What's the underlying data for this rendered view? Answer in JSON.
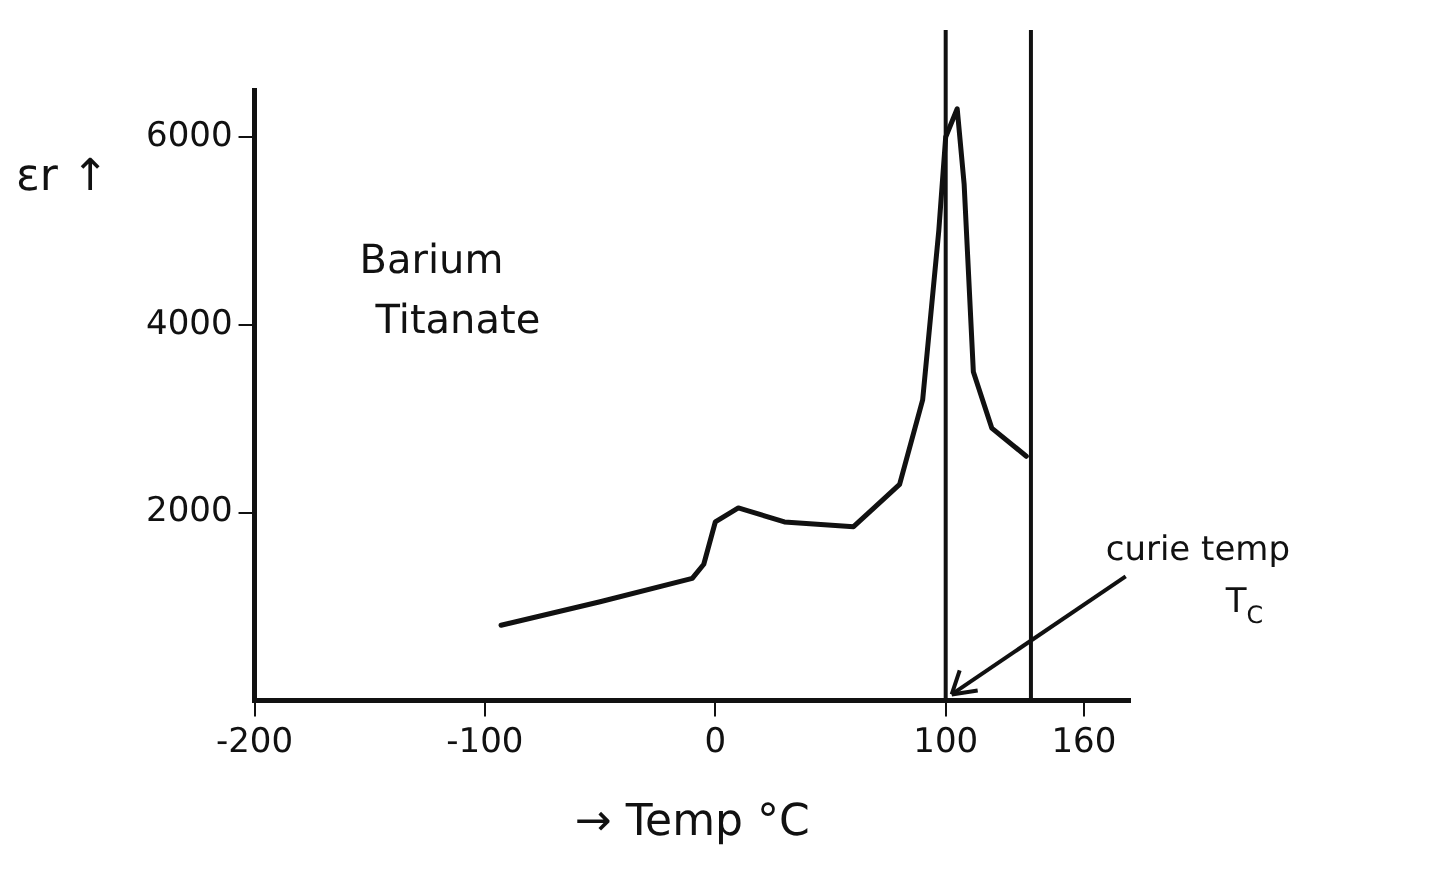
{
  "chart_data": {
    "type": "line",
    "xlabel": "→ Temp °C",
    "ylabel": "εr ↑",
    "x": [
      -93,
      -50,
      -10,
      -5,
      0,
      10,
      30,
      60,
      80,
      90,
      97,
      100,
      105,
      108,
      112,
      120,
      135
    ],
    "series": [
      {
        "color": "#111111",
        "values": [
          800,
          1050,
          1300,
          1450,
          1900,
          2050,
          1900,
          1850,
          2300,
          3200,
          5000,
          6000,
          6300,
          5500,
          3500,
          2900,
          2600
        ]
      }
    ],
    "xlim": [
      -200,
      180
    ],
    "xticks": [
      -200,
      -100,
      0,
      100,
      160
    ],
    "ylim": [
      0,
      6500
    ],
    "yticks": [
      2000,
      4000,
      6000
    ],
    "ref_lines": [
      {
        "axis": "x",
        "value": 100,
        "color": "#111111"
      },
      {
        "axis": "x",
        "value": 137,
        "color": "#111111"
      }
    ],
    "annotations": [
      "Barium Titanate",
      {
        "text": "curie temp T$_{C}$",
        "x": 100,
        "y": 0
      }
    ],
    "grid": false,
    "legend": false,
    "marker": "none",
    "line_style": "solid"
  }
}
